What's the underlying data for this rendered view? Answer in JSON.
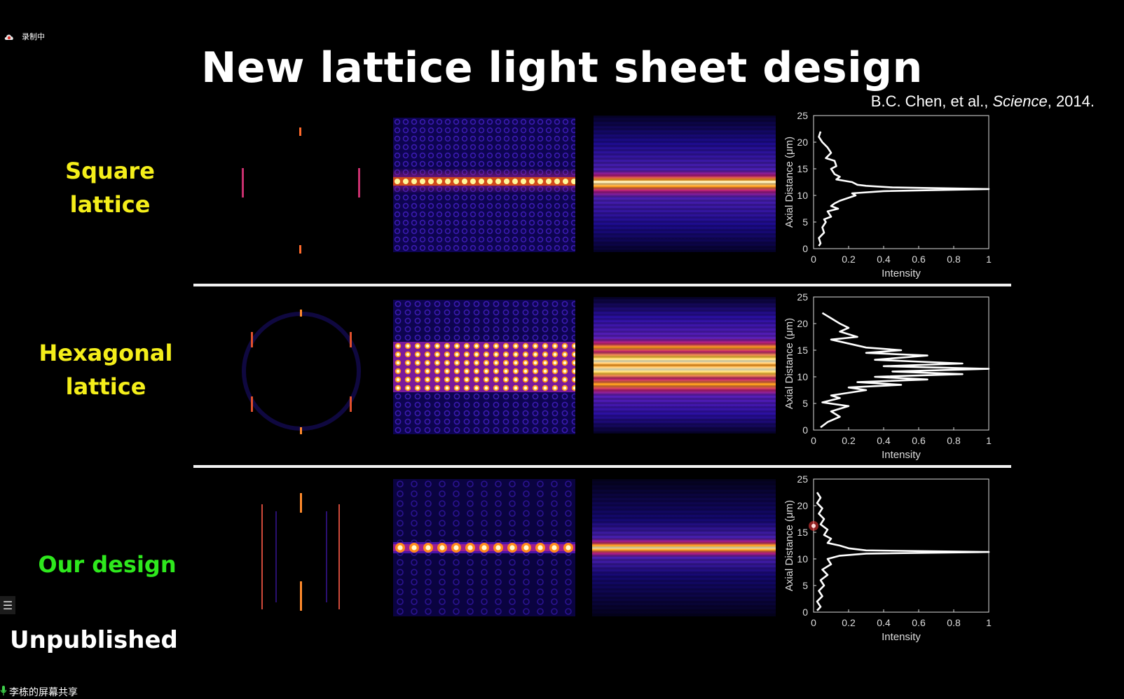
{
  "recording": {
    "label": "录制中",
    "icon": "cloud-recording-icon"
  },
  "slide": {
    "title": "New lattice light sheet design",
    "citation": {
      "authors": "B.C. Chen, et al.,",
      "journal": "Science",
      "year": ", 2014."
    },
    "rows": [
      {
        "label_line1": "Square",
        "label_line2": "lattice",
        "color": "#f4ee1a"
      },
      {
        "label_line1": "Hexagonal",
        "label_line2": "lattice",
        "color": "#f4ee1a"
      },
      {
        "label_line1": "Our design",
        "label_line2": "",
        "color": "#2ee81d"
      }
    ],
    "footer_label": "Unpublished"
  },
  "controls": {
    "menu_icon": "list-menu-icon",
    "menu_glyph": "☰"
  },
  "screen_share": {
    "label": "李栋的屏幕共享",
    "icon": "microphone-icon"
  },
  "chart_data": [
    {
      "type": "line",
      "xlabel": "Intensity",
      "ylabel": "Axial Distance (μm)",
      "xlim": [
        0,
        1
      ],
      "ylim": [
        0,
        25
      ],
      "xticks": [
        "0",
        "0.2",
        "0.4",
        "0.6",
        "0.8",
        "1"
      ],
      "yticks": [
        "0",
        "5",
        "10",
        "15",
        "20",
        "25"
      ],
      "series": [
        {
          "x": [
            0.04,
            0.03,
            0.05,
            0.08,
            0.1,
            0.07,
            0.12,
            0.13,
            0.1,
            0.12,
            0.15,
            0.13,
            0.22,
            0.25,
            0.3,
            0.45,
            1.0,
            0.4,
            0.22,
            0.24,
            0.15,
            0.12,
            0.1,
            0.14,
            0.08,
            0.1,
            0.06,
            0.07,
            0.05,
            0.06,
            0.03,
            0.04,
            0.03
          ],
          "y": [
            22,
            21,
            20,
            19,
            18,
            17,
            16.5,
            15.5,
            15,
            14,
            13.5,
            13,
            12.5,
            12,
            11.8,
            11.5,
            11.2,
            10.8,
            10.4,
            10,
            9,
            8.5,
            8,
            7.5,
            7,
            6,
            5.5,
            5,
            4,
            3,
            2,
            1,
            0.5
          ]
        }
      ]
    },
    {
      "type": "line",
      "xlabel": "Intensity",
      "ylabel": "Axial Distance (μm)",
      "xlim": [
        0,
        1
      ],
      "ylim": [
        0,
        25
      ],
      "xticks": [
        "0",
        "0.2",
        "0.4",
        "0.6",
        "0.8",
        "1"
      ],
      "yticks": [
        "0",
        "5",
        "10",
        "15",
        "20",
        "25"
      ],
      "series": [
        {
          "x": [
            0.05,
            0.1,
            0.15,
            0.2,
            0.15,
            0.25,
            0.1,
            0.3,
            0.5,
            0.3,
            0.65,
            0.35,
            0.85,
            0.4,
            1.0,
            0.45,
            0.85,
            0.35,
            0.65,
            0.25,
            0.5,
            0.2,
            0.3,
            0.1,
            0.15,
            0.05,
            0.2,
            0.1,
            0.15,
            0.08,
            0.04
          ],
          "y": [
            22,
            21,
            20,
            19.2,
            18.5,
            17.5,
            17,
            15.5,
            15,
            14.5,
            14,
            13.2,
            12.5,
            12,
            11.5,
            11,
            10.5,
            10,
            9.5,
            9,
            8.5,
            8,
            7.5,
            6.5,
            6,
            5.2,
            4.5,
            3.5,
            2.5,
            1.5,
            0.5
          ]
        }
      ]
    },
    {
      "type": "line",
      "xlabel": "Intensity",
      "ylabel": "Axial Distance (μm)",
      "xlim": [
        0,
        1
      ],
      "ylim": [
        0,
        25
      ],
      "xticks": [
        "0",
        "0.2",
        "0.4",
        "0.6",
        "0.8",
        "1"
      ],
      "yticks": [
        "0",
        "5",
        "10",
        "15",
        "20",
        "25"
      ],
      "series": [
        {
          "x": [
            0.02,
            0.04,
            0.02,
            0.05,
            0.03,
            0.06,
            0.04,
            0.08,
            0.06,
            0.1,
            0.08,
            0.15,
            0.2,
            0.3,
            1.0,
            0.3,
            0.15,
            0.08,
            0.1,
            0.05,
            0.08,
            0.04,
            0.06,
            0.03,
            0.05,
            0.02,
            0.04,
            0.02
          ],
          "y": [
            22.5,
            21.5,
            20.5,
            19.5,
            18.5,
            17.5,
            16.5,
            15.5,
            14.5,
            13.8,
            13,
            12.5,
            12,
            11.6,
            11.3,
            11,
            10.6,
            10,
            9,
            8,
            7,
            6,
            5,
            4,
            3,
            2,
            1,
            0.3
          ]
        }
      ],
      "annotation": "cursor-highlight"
    }
  ]
}
